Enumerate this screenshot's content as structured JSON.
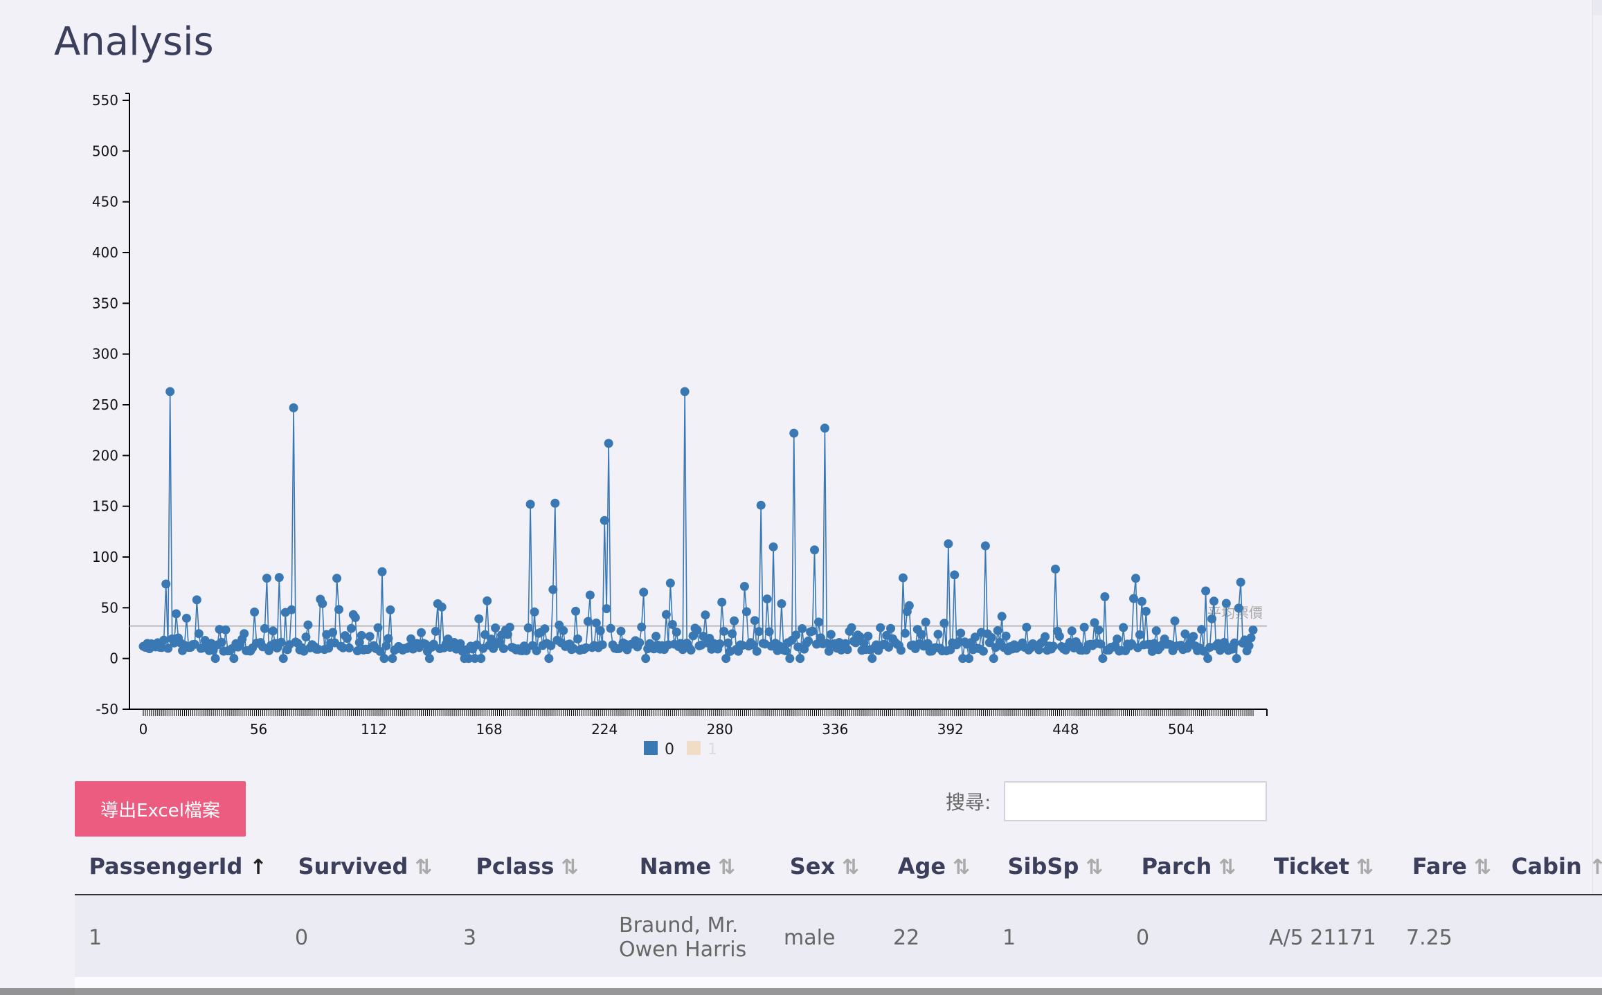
{
  "page": {
    "title": "Analysis"
  },
  "chart_data": {
    "type": "line",
    "xlim": [
      0,
      539
    ],
    "ylim": [
      -50,
      550
    ],
    "yticks": [
      -50,
      0,
      50,
      100,
      150,
      200,
      250,
      300,
      350,
      400,
      450,
      500,
      550
    ],
    "xticks": [
      0,
      56,
      112,
      168,
      224,
      280,
      336,
      392,
      448,
      504
    ],
    "series": [
      {
        "name": "0",
        "color": "#3a78b4",
        "values": []
      },
      {
        "name": "1",
        "color": "#f1dcc5",
        "values": []
      }
    ],
    "reference_line": {
      "label": "平均票價",
      "value": 32
    },
    "legend_placement": "bottom-center"
  },
  "toolbar": {
    "export_label": "導出Excel檔案",
    "search_label": "搜尋:"
  },
  "table": {
    "columns": [
      "PassengerId",
      "Survived",
      "Pclass",
      "Name",
      "Sex",
      "Age",
      "SibSp",
      "Parch",
      "Ticket",
      "Fare",
      "Cabin"
    ],
    "rows": [
      [
        "1",
        "0",
        "3",
        "Braund, Mr. Owen Harris",
        "male",
        "22",
        "1",
        "0",
        "A/5 21171",
        "7.25",
        ""
      ]
    ]
  }
}
